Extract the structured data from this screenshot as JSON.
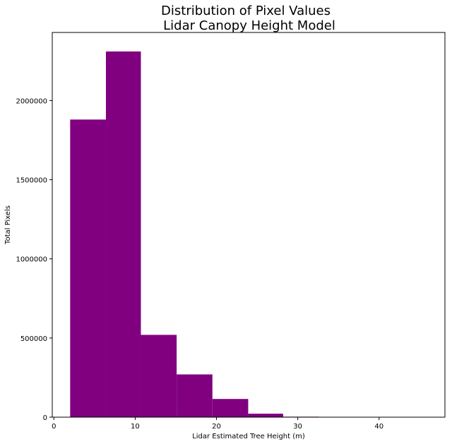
{
  "chart_data": {
    "type": "bar",
    "title_line1": "Distribution of Pixel Values",
    "title_line2": "Lidar Canopy Height Model",
    "xlabel": "Lidar Estimated Tree Height (m)",
    "ylabel": "Total Pixels",
    "bar_color": "#800080",
    "xlim": [
      -0.2,
      48.1
    ],
    "ylim": [
      0,
      2430000
    ],
    "xticks": [
      0,
      10,
      20,
      30,
      40
    ],
    "yticks": [
      0,
      500000,
      1000000,
      1500000,
      2000000
    ],
    "bins": [
      {
        "x0": 2.0,
        "x1": 6.4,
        "value": 1880000
      },
      {
        "x0": 6.4,
        "x1": 10.7,
        "value": 2310000
      },
      {
        "x0": 10.7,
        "x1": 15.1,
        "value": 520000
      },
      {
        "x0": 15.1,
        "x1": 19.5,
        "value": 270000
      },
      {
        "x0": 19.5,
        "x1": 23.9,
        "value": 115000
      },
      {
        "x0": 23.9,
        "x1": 28.2,
        "value": 22000
      },
      {
        "x0": 28.2,
        "x1": 32.6,
        "value": 3000
      },
      {
        "x0": 32.6,
        "x1": 37.0,
        "value": 600
      },
      {
        "x0": 37.0,
        "x1": 41.4,
        "value": 150
      },
      {
        "x0": 41.4,
        "x1": 45.8,
        "value": 40
      }
    ]
  }
}
